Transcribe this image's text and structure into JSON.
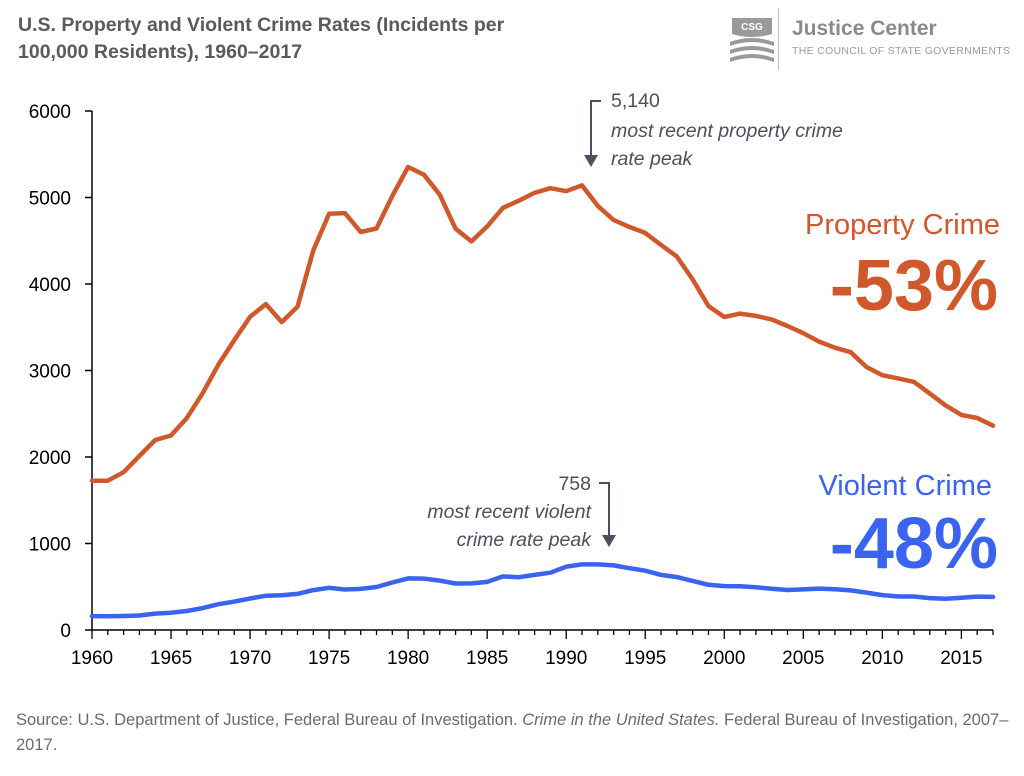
{
  "header": {
    "title": "U.S. Property and Violent Crime Rates (Incidents per 100,000 Residents), 1960–2017"
  },
  "logo": {
    "badge": "CSG",
    "name": "Justice Center",
    "subtitle": "THE COUNCIL OF STATE GOVERNMENTS"
  },
  "footer": {
    "source_prefix": "Source: U.S. Department of Justice, Federal Bureau of Investigation. ",
    "source_title": "Crime in the United States.",
    "source_suffix": " Federal Bureau of Investigation, 2007–2017."
  },
  "callouts": {
    "property_label": "Property Crime",
    "property_change": "-53%",
    "violent_label": "Violent Crime",
    "violent_change": "-48%",
    "property_peak_value": "5,140",
    "property_peak_line1": "most recent property crime",
    "property_peak_line2": "rate peak",
    "violent_peak_value": "758",
    "violent_peak_line1": "most recent violent",
    "violent_peak_line2": "crime rate peak"
  },
  "colors": {
    "property": "#d0582a",
    "violent": "#3a63f0",
    "axis": "#000000",
    "annotation": "#4a5060"
  },
  "chart_data": {
    "type": "line",
    "title": "",
    "xlabel": "",
    "ylabel": "",
    "xlim": [
      1960,
      2017
    ],
    "ylim": [
      0,
      6000
    ],
    "grid": false,
    "x_ticks": [
      1960,
      1965,
      1970,
      1975,
      1980,
      1985,
      1990,
      1995,
      2000,
      2005,
      2010,
      2015
    ],
    "y_ticks": [
      0,
      1000,
      2000,
      3000,
      4000,
      5000,
      6000
    ],
    "x": [
      1960,
      1961,
      1962,
      1963,
      1964,
      1965,
      1966,
      1967,
      1968,
      1969,
      1970,
      1971,
      1972,
      1973,
      1974,
      1975,
      1976,
      1977,
      1978,
      1979,
      1980,
      1981,
      1982,
      1983,
      1984,
      1985,
      1986,
      1987,
      1988,
      1989,
      1990,
      1991,
      1992,
      1993,
      1994,
      1995,
      1996,
      1997,
      1998,
      1999,
      2000,
      2001,
      2002,
      2003,
      2004,
      2005,
      2006,
      2007,
      2008,
      2009,
      2010,
      2011,
      2012,
      2013,
      2014,
      2015,
      2016,
      2017
    ],
    "series": [
      {
        "name": "Property Crime",
        "values": [
          1726,
          1726,
          1824,
          2012,
          2197,
          2249,
          2450,
          2736,
          3071,
          3351,
          3621,
          3768,
          3560,
          3737,
          4389,
          4811,
          4820,
          4601,
          4642,
          5017,
          5353,
          5264,
          5032,
          4638,
          4492,
          4666,
          4881,
          4963,
          5054,
          5107,
          5073,
          5140,
          4903,
          4740,
          4660,
          4591,
          4451,
          4317,
          4052,
          3744,
          3618,
          3658,
          3631,
          3591,
          3515,
          3431,
          3334,
          3264,
          3212,
          3041,
          2946,
          2909,
          2868,
          2734,
          2596,
          2487,
          2451,
          2362
        ]
      },
      {
        "name": "Violent Crime",
        "values": [
          161,
          158,
          162,
          168,
          190,
          200,
          220,
          253,
          298,
          328,
          364,
          396,
          401,
          417,
          461,
          488,
          468,
          475,
          497,
          549,
          597,
          594,
          571,
          538,
          539,
          556,
          620,
          610,
          637,
          663,
          732,
          758,
          758,
          747,
          714,
          685,
          637,
          611,
          568,
          523,
          507,
          505,
          494,
          476,
          463,
          469,
          479,
          471,
          458,
          432,
          404,
          387,
          387,
          369,
          362,
          373,
          386,
          383
        ]
      }
    ]
  }
}
